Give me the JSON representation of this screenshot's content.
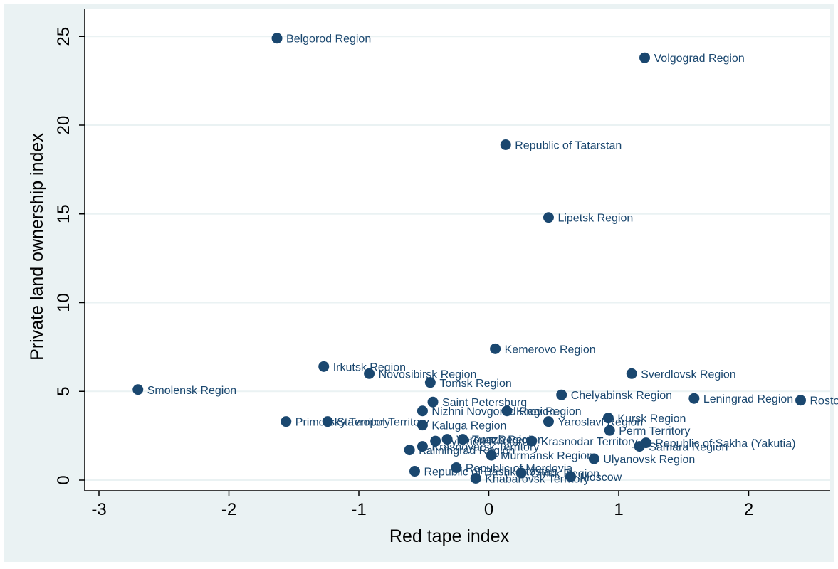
{
  "chart_data": {
    "type": "scatter",
    "title": "",
    "xlabel": "Red tape index",
    "ylabel": "Private land ownership index",
    "xlim": [
      -3.1,
      2.5
    ],
    "ylim": [
      -0.6,
      26
    ],
    "xticks": [
      "-3",
      "-2",
      "-1",
      "0",
      "1",
      "2"
    ],
    "yticks": [
      "0",
      "5",
      "10",
      "15",
      "20",
      "25"
    ],
    "grid": true,
    "legend": "none",
    "colors": {
      "outer_background": "#eaf2f3",
      "plot_background": "#ffffff",
      "gridline": "#eaf2f3",
      "marker": "#1a476f",
      "label": "#1a476f",
      "axis": "#000000"
    },
    "points": [
      {
        "label": "Belgorod Region",
        "x": -1.63,
        "y": 24.9
      },
      {
        "label": "Volgograd Region",
        "x": 1.2,
        "y": 23.8
      },
      {
        "label": "Republic of Tatarstan",
        "x": 0.13,
        "y": 18.9
      },
      {
        "label": "Lipetsk Region",
        "x": 0.46,
        "y": 14.8
      },
      {
        "label": "Kemerovo Region",
        "x": 0.05,
        "y": 7.4
      },
      {
        "label": "Irkutsk Region",
        "x": -1.27,
        "y": 6.4
      },
      {
        "label": "Novosibirsk Region",
        "x": -0.92,
        "y": 6.0
      },
      {
        "label": "Tomsk Region",
        "x": -0.45,
        "y": 5.5
      },
      {
        "label": "Sverdlovsk Region",
        "x": 1.1,
        "y": 6.0
      },
      {
        "label": "Smolensk Region",
        "x": -2.7,
        "y": 5.1
      },
      {
        "label": "Chelyabinsk Region",
        "x": 0.56,
        "y": 4.8
      },
      {
        "label": "Leningrad Region",
        "x": 1.58,
        "y": 4.6
      },
      {
        "label": "Rostov Region",
        "x": 2.4,
        "y": 4.5
      },
      {
        "label": "Saint Petersburg",
        "x": -0.43,
        "y": 4.4
      },
      {
        "label": "Nizhni Novgorod Region",
        "x": -0.51,
        "y": 3.9
      },
      {
        "label": "Kirov Region",
        "x": 0.14,
        "y": 3.9
      },
      {
        "label": "Kursk Region",
        "x": 0.92,
        "y": 3.5
      },
      {
        "label": "Primorsky Territory",
        "x": -1.56,
        "y": 3.3
      },
      {
        "label": "Stavropol Territory",
        "x": -1.24,
        "y": 3.3
      },
      {
        "label": "Yaroslavl Region",
        "x": 0.46,
        "y": 3.3
      },
      {
        "label": "Kaluga Region",
        "x": -0.51,
        "y": 3.1
      },
      {
        "label": "Perm Territory",
        "x": 0.93,
        "y": 2.8
      },
      {
        "label": "Voronezh Region",
        "x": -0.32,
        "y": 2.3
      },
      {
        "label": "Tver Region",
        "x": -0.2,
        "y": 2.3
      },
      {
        "label": "Krasnodar Territory",
        "x": 0.33,
        "y": 2.2
      },
      {
        "label": "Tyumen Region",
        "x": -0.41,
        "y": 2.2
      },
      {
        "label": "Republic of Sakha (Yakutia)",
        "x": 1.21,
        "y": 2.1
      },
      {
        "label": "Samara Region",
        "x": 1.16,
        "y": 1.9
      },
      {
        "label": "Krasnoyarsk Territory",
        "x": -0.51,
        "y": 1.9
      },
      {
        "label": "Kaliningrad Region",
        "x": -0.61,
        "y": 1.7
      },
      {
        "label": "Murmansk Region",
        "x": 0.02,
        "y": 1.4
      },
      {
        "label": "Ulyanovsk Region",
        "x": 0.81,
        "y": 1.2
      },
      {
        "label": "Republic of Mordovia",
        "x": -0.25,
        "y": 0.7
      },
      {
        "label": "Republic of Bashkortostan",
        "x": -0.57,
        "y": 0.5
      },
      {
        "label": "Omsk Region",
        "x": 0.25,
        "y": 0.4
      },
      {
        "label": "Moscow",
        "x": 0.63,
        "y": 0.2
      },
      {
        "label": "Khabarovsk Territory",
        "x": -0.1,
        "y": 0.1
      }
    ]
  }
}
